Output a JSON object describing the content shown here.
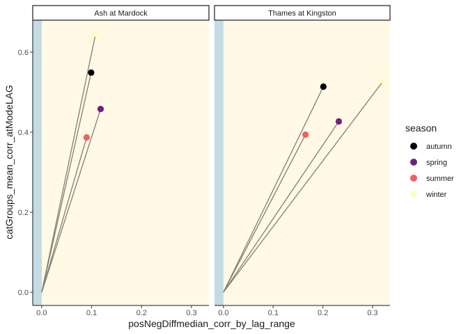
{
  "chart_data": {
    "type": "scatter",
    "xlabel": "posNegDiffmedian_corr_by_lag_range",
    "ylabel": "catGroups_mean_corr_atModeLAG",
    "xlim": [
      -0.018,
      0.335
    ],
    "ylim": [
      -0.033,
      0.68
    ],
    "x_ticks": [
      0.0,
      0.1,
      0.2,
      0.3
    ],
    "x_tick_labels": [
      "0.0",
      "0.1",
      "0.2",
      "0.3"
    ],
    "y_ticks": [
      0.0,
      0.2,
      0.4,
      0.6
    ],
    "y_tick_labels": [
      "0.0",
      "0.2",
      "0.4",
      "0.6"
    ],
    "grid": false,
    "legend": {
      "title": "season",
      "position": "right",
      "entries": [
        {
          "name": "autumn",
          "color": "#000004"
        },
        {
          "name": "spring",
          "color": "#721f81"
        },
        {
          "name": "summer",
          "color": "#f1605d"
        },
        {
          "name": "winter",
          "color": "#fcfdbf"
        }
      ]
    },
    "panel_background": "#fff9e6",
    "negative_band": {
      "x_from": -0.018,
      "x_to": 0.0,
      "color": "#c3dbe4"
    },
    "segment_color": "#7f7f73",
    "panels": [
      {
        "title": "Ash at Mardock",
        "points": [
          {
            "season": "autumn",
            "x": 0.099,
            "y": 0.549
          },
          {
            "season": "spring",
            "x": 0.118,
            "y": 0.458
          },
          {
            "season": "summer",
            "x": 0.09,
            "y": 0.387
          },
          {
            "season": "winter",
            "x": 0.108,
            "y": 0.646
          }
        ]
      },
      {
        "title": "Thames at Kingston",
        "points": [
          {
            "season": "autumn",
            "x": 0.201,
            "y": 0.514
          },
          {
            "season": "spring",
            "x": 0.232,
            "y": 0.427
          },
          {
            "season": "summer",
            "x": 0.165,
            "y": 0.394
          },
          {
            "season": "winter",
            "x": 0.322,
            "y": 0.529
          }
        ]
      }
    ]
  }
}
